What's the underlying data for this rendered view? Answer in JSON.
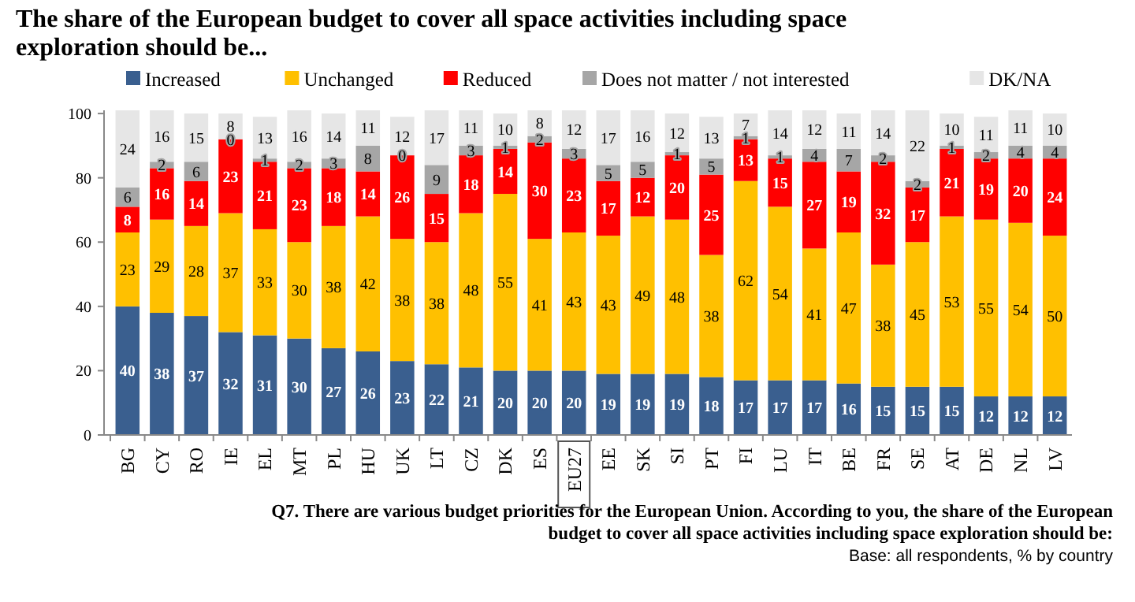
{
  "chart_data": {
    "type": "bar",
    "stacked": true,
    "title": "The share of the European budget to cover all space activities including space exploration should be...",
    "categories": [
      "BG",
      "CY",
      "RO",
      "IE",
      "EL",
      "MT",
      "PL",
      "HU",
      "UK",
      "LT",
      "CZ",
      "DK",
      "ES",
      "EU27",
      "EE",
      "SK",
      "SI",
      "PT",
      "FI",
      "LU",
      "IT",
      "BE",
      "FR",
      "SE",
      "AT",
      "DE",
      "NL",
      "LV"
    ],
    "series": [
      {
        "name": "Increased",
        "color": "#3a5f8f",
        "values": [
          40,
          38,
          37,
          32,
          31,
          30,
          27,
          26,
          23,
          22,
          21,
          20,
          20,
          20,
          19,
          19,
          19,
          18,
          17,
          17,
          17,
          16,
          15,
          15,
          15,
          12,
          12,
          12
        ]
      },
      {
        "name": "Unchanged",
        "color": "#ffc000",
        "values": [
          23,
          29,
          28,
          37,
          33,
          30,
          38,
          42,
          38,
          38,
          48,
          55,
          41,
          43,
          43,
          49,
          48,
          38,
          62,
          54,
          41,
          47,
          38,
          45,
          53,
          55,
          54,
          50
        ]
      },
      {
        "name": "Reduced",
        "color": "#ff0000",
        "values": [
          8,
          16,
          14,
          23,
          21,
          23,
          18,
          14,
          26,
          15,
          18,
          14,
          30,
          23,
          17,
          12,
          20,
          25,
          13,
          15,
          27,
          19,
          32,
          17,
          21,
          19,
          20,
          24
        ]
      },
      {
        "name": "Does not matter / not interested",
        "color": "#a6a6a6",
        "values": [
          6,
          2,
          6,
          0,
          1,
          2,
          3,
          8,
          0,
          9,
          3,
          1,
          2,
          3,
          5,
          5,
          1,
          5,
          1,
          1,
          4,
          7,
          2,
          2,
          1,
          2,
          4,
          4
        ]
      },
      {
        "name": "DK/NA",
        "color": "#e6e6e6",
        "values": [
          24,
          16,
          15,
          8,
          13,
          16,
          14,
          11,
          12,
          17,
          11,
          10,
          8,
          12,
          17,
          16,
          12,
          13,
          7,
          14,
          12,
          11,
          14,
          22,
          10,
          11,
          11,
          10
        ]
      }
    ],
    "ylim": [
      0,
      101
    ],
    "yticks": [
      0,
      20,
      40,
      60,
      80,
      100
    ],
    "grid": false,
    "legend": "top",
    "data_labels": true,
    "annotations": [
      "Q7. There are various budget priorities for the European Union. According to you, the share of the European budget to cover all space activities including space exploration should be:",
      "Base: all respondents, % by country"
    ]
  }
}
